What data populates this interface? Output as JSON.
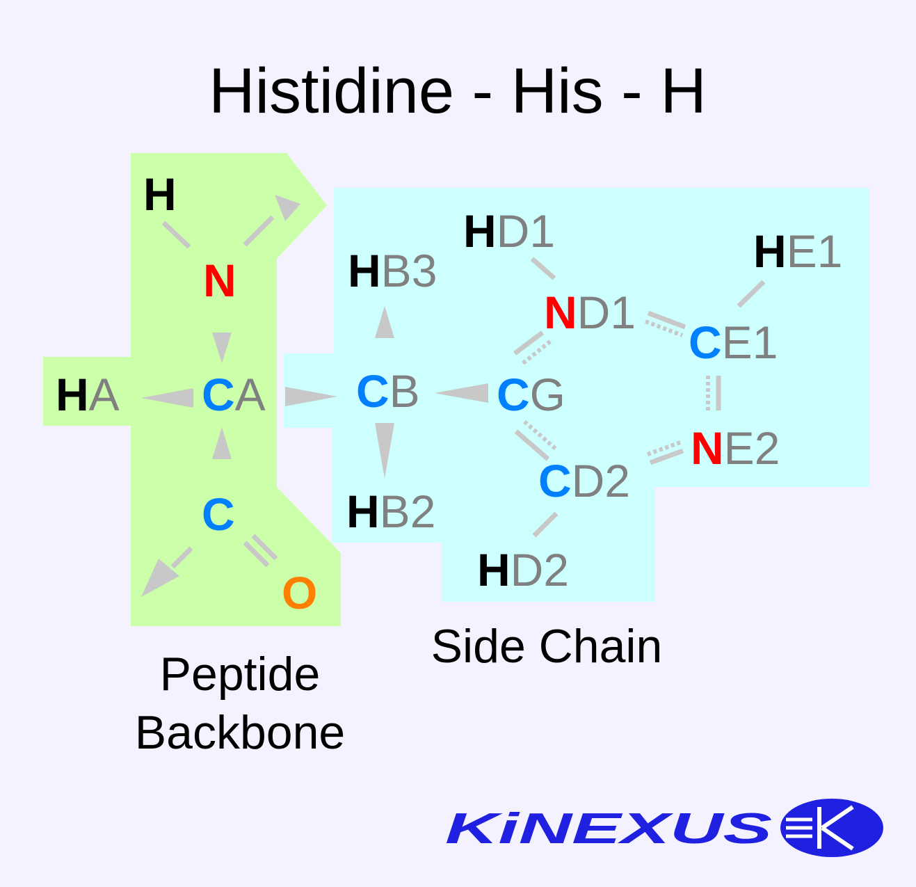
{
  "title": "Histidine - His - H",
  "regions": {
    "backbone_label_line1": "Peptide",
    "backbone_label_line2": "Backbone",
    "side_chain_label": "Side Chain"
  },
  "colors": {
    "background": "#f3f2fe",
    "backbone_fill": "#ccffaa",
    "side_chain_fill": "#ccfffe",
    "hydrogen": "#000000",
    "nitrogen": "#ff0000",
    "carbon": "#0080ff",
    "oxygen": "#ff8000",
    "locant": "#808080",
    "bond": "#c8c8c8",
    "logo": "#2020e0"
  },
  "atoms": {
    "H": {
      "element": "H",
      "locant": ""
    },
    "N": {
      "element": "N",
      "locant": ""
    },
    "HA": {
      "element": "H",
      "locant": "A"
    },
    "CA": {
      "element": "C",
      "locant": "A"
    },
    "C": {
      "element": "C",
      "locant": ""
    },
    "O": {
      "element": "O",
      "locant": ""
    },
    "CB": {
      "element": "C",
      "locant": "B"
    },
    "HB3": {
      "element": "H",
      "locant": "B3"
    },
    "HB2": {
      "element": "H",
      "locant": "B2"
    },
    "CG": {
      "element": "C",
      "locant": "G"
    },
    "ND1": {
      "element": "N",
      "locant": "D1"
    },
    "HD1": {
      "element": "H",
      "locant": "D1"
    },
    "CE1": {
      "element": "C",
      "locant": "E1"
    },
    "HE1": {
      "element": "H",
      "locant": "E1"
    },
    "NE2": {
      "element": "N",
      "locant": "E2"
    },
    "CD2": {
      "element": "C",
      "locant": "D2"
    },
    "HD2": {
      "element": "H",
      "locant": "D2"
    }
  },
  "logo": {
    "text": "KiNEXUS",
    "emblem_icon": "kinexus-k-emblem"
  }
}
